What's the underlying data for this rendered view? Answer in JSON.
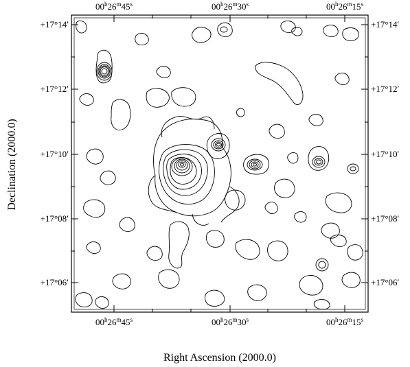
{
  "chart_data": {
    "type": "contour",
    "xlabel": "Right Ascension (2000.0)",
    "ylabel": "Declination (2000.0)",
    "x_ticks": [
      "00h26m45s",
      "00h26m30s",
      "00h26m15s"
    ],
    "y_ticks": [
      "+17°14′",
      "+17°12′",
      "+17°10′",
      "+17°08′",
      "+17°06′"
    ],
    "grid": false
  }
}
